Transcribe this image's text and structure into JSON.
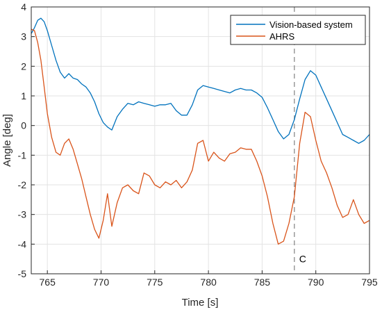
{
  "chart_data": {
    "type": "line",
    "xlabel": "Time [s]",
    "ylabel": "Angle [deg]",
    "xlim": [
      763.5,
      795
    ],
    "ylim": [
      -5,
      4
    ],
    "xticks": [
      765,
      770,
      775,
      780,
      785,
      790,
      795
    ],
    "yticks": [
      -5,
      -4,
      -3,
      -2,
      -1,
      0,
      1,
      2,
      3,
      4
    ],
    "grid": true,
    "legend_position": "top-right",
    "series": [
      {
        "name": "Vision-based system",
        "color": "#0072BD",
        "x": [
          763.5,
          763.8,
          764.1,
          764.4,
          764.7,
          765.0,
          765.4,
          765.8,
          766.2,
          766.6,
          767.0,
          767.4,
          767.8,
          768.2,
          768.6,
          769.0,
          769.4,
          769.8,
          770.2,
          770.6,
          771.0,
          771.5,
          772.0,
          772.5,
          773.0,
          773.5,
          774.0,
          774.5,
          775.0,
          775.5,
          776.0,
          776.5,
          777.0,
          777.5,
          778.0,
          778.5,
          779.0,
          779.5,
          780.0,
          780.5,
          781.0,
          781.5,
          782.0,
          782.5,
          783.0,
          783.5,
          784.0,
          784.5,
          785.0,
          785.5,
          786.0,
          786.5,
          787.0,
          787.5,
          788.0,
          788.5,
          789.0,
          789.5,
          790.0,
          790.5,
          791.0,
          791.5,
          792.0,
          792.5,
          793.0,
          793.5,
          794.0,
          794.5,
          795.0
        ],
        "y": [
          3.1,
          3.3,
          3.55,
          3.62,
          3.5,
          3.2,
          2.7,
          2.2,
          1.8,
          1.6,
          1.75,
          1.6,
          1.55,
          1.4,
          1.3,
          1.1,
          0.8,
          0.4,
          0.1,
          -0.05,
          -0.15,
          0.3,
          0.55,
          0.75,
          0.7,
          0.8,
          0.75,
          0.7,
          0.65,
          0.7,
          0.7,
          0.75,
          0.5,
          0.35,
          0.35,
          0.7,
          1.2,
          1.35,
          1.3,
          1.25,
          1.2,
          1.15,
          1.1,
          1.2,
          1.25,
          1.2,
          1.2,
          1.1,
          0.95,
          0.6,
          0.2,
          -0.2,
          -0.45,
          -0.3,
          0.2,
          0.9,
          1.55,
          1.85,
          1.7,
          1.3,
          0.9,
          0.5,
          0.1,
          -0.3,
          -0.4,
          -0.5,
          -0.6,
          -0.5,
          -0.3
        ]
      },
      {
        "name": "AHRS",
        "color": "#D95319",
        "x": [
          763.5,
          763.8,
          764.1,
          764.4,
          764.7,
          765.0,
          765.4,
          765.8,
          766.2,
          766.6,
          767.0,
          767.4,
          767.8,
          768.2,
          768.6,
          769.0,
          769.4,
          769.8,
          770.2,
          770.6,
          771.0,
          771.5,
          772.0,
          772.5,
          773.0,
          773.5,
          774.0,
          774.5,
          775.0,
          775.5,
          776.0,
          776.5,
          777.0,
          777.5,
          778.0,
          778.5,
          779.0,
          779.5,
          780.0,
          780.5,
          781.0,
          781.5,
          782.0,
          782.5,
          783.0,
          783.5,
          784.0,
          784.5,
          785.0,
          785.5,
          786.0,
          786.5,
          787.0,
          787.5,
          788.0,
          788.5,
          789.0,
          789.5,
          790.0,
          790.5,
          791.0,
          791.5,
          792.0,
          792.5,
          793.0,
          793.5,
          794.0,
          794.5,
          795.0
        ],
        "y": [
          3.25,
          3.2,
          2.8,
          2.2,
          1.3,
          0.4,
          -0.4,
          -0.9,
          -1.0,
          -0.6,
          -0.45,
          -0.8,
          -1.3,
          -1.8,
          -2.4,
          -3.0,
          -3.5,
          -3.8,
          -3.2,
          -2.3,
          -3.4,
          -2.6,
          -2.1,
          -2.0,
          -2.2,
          -2.3,
          -1.6,
          -1.7,
          -2.0,
          -2.1,
          -1.9,
          -2.0,
          -1.85,
          -2.1,
          -1.9,
          -1.5,
          -0.6,
          -0.5,
          -1.2,
          -0.9,
          -1.1,
          -1.2,
          -0.95,
          -0.9,
          -0.75,
          -0.8,
          -0.8,
          -1.2,
          -1.7,
          -2.4,
          -3.3,
          -4.0,
          -3.9,
          -3.3,
          -2.4,
          -0.6,
          0.45,
          0.3,
          -0.5,
          -1.2,
          -1.6,
          -2.1,
          -2.7,
          -3.1,
          -3.0,
          -2.5,
          -3.0,
          -3.3,
          -3.2
        ]
      }
    ],
    "annotations": [
      {
        "type": "vline",
        "x": 788,
        "label": "C",
        "label_y": -4.5,
        "color": "#999999"
      }
    ]
  }
}
